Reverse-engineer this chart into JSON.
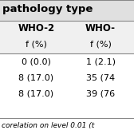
{
  "title": "pathology type",
  "col1_header1": "WHO-2",
  "col2_header1": "WHO-",
  "col_subheader": "f (%)",
  "rows": [
    [
      "0 (0.0)",
      "1 (2.1)"
    ],
    [
      "8 (17.0)",
      "35 (74"
    ],
    [
      "8 (17.0)",
      "39 (76"
    ]
  ],
  "footer": "corelation on level 0.01 (t",
  "bg_color": "#ffffff",
  "text_color": "#000000",
  "header_bg": "#e0e0e0",
  "font_size": 7.5,
  "title_font_size": 9.5
}
